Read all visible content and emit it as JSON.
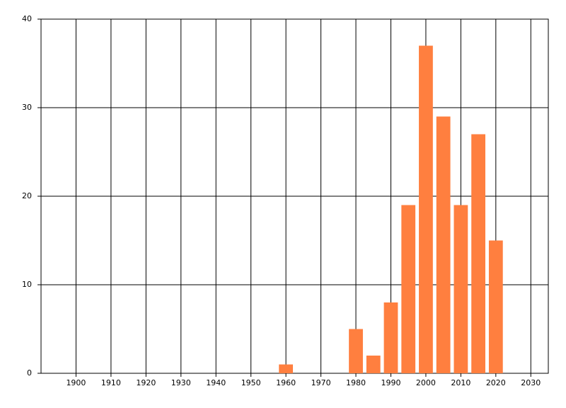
{
  "chart_data": {
    "type": "bar",
    "x": [
      1960,
      1980,
      1985,
      1990,
      1995,
      2000,
      2005,
      2010,
      2015,
      2020
    ],
    "values": [
      1,
      5,
      2,
      8,
      19,
      37,
      29,
      19,
      27,
      15
    ],
    "color": "#ff7f3f",
    "xlim": [
      1890,
      2035
    ],
    "xticks": [
      1900,
      1910,
      1920,
      1930,
      1940,
      1950,
      1960,
      1970,
      1980,
      1990,
      2000,
      2010,
      2020,
      2030
    ],
    "ylim": [
      0,
      40
    ],
    "yticks": [
      0,
      10,
      20,
      30,
      40
    ],
    "grid": true
  }
}
